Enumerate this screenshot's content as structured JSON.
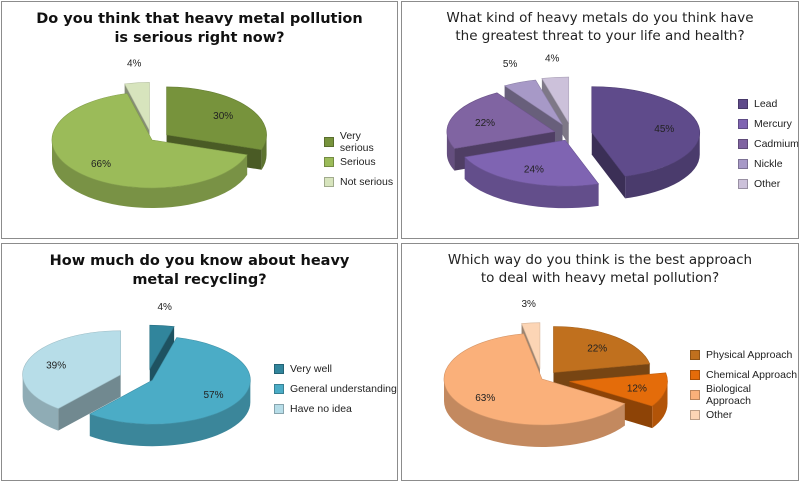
{
  "chart_data": [
    {
      "type": "pie",
      "title": "Do you think that heavy metal pollution\nis serious right now?",
      "categories": [
        "Very serious",
        "Serious",
        "Not serious"
      ],
      "values": [
        30,
        66,
        4
      ],
      "labels": [
        "30%",
        "66%",
        "4%"
      ],
      "colors": [
        "#77933c",
        "#9bbb59",
        "#d7e4bd"
      ],
      "legend_position": "right"
    },
    {
      "type": "pie",
      "title": "What kind of heavy metals do you think have\nthe greatest threat to your life and health?",
      "categories": [
        "Lead",
        "Mercury",
        "Cadmium",
        "Nickle",
        "Other"
      ],
      "values": [
        45,
        24,
        22,
        5,
        4
      ],
      "labels": [
        "45%",
        "24%",
        "22%",
        "5%",
        "4%"
      ],
      "colors": [
        "#5f4b8b",
        "#7f64b2",
        "#8064a2",
        "#a799c7",
        "#ccc1da"
      ],
      "legend_position": "right"
    },
    {
      "type": "pie",
      "title": "How much do you know about heavy\nmetal recycling?",
      "categories": [
        "Very well",
        "General understanding",
        "Have no idea"
      ],
      "values": [
        4,
        57,
        39
      ],
      "labels": [
        "4%",
        "57%",
        "39%"
      ],
      "colors": [
        "#31859c",
        "#4bacc6",
        "#b7dde8"
      ],
      "legend_position": "right"
    },
    {
      "type": "pie",
      "title": "Which way do you think is the best approach\nto deal with heavy metal pollution?",
      "categories": [
        "Physical Approach",
        "Chemical Approach",
        "Biological Approach",
        "Other"
      ],
      "values": [
        22,
        12,
        63,
        3
      ],
      "labels": [
        "22%",
        "12%",
        "63%",
        "3%"
      ],
      "colors": [
        "#c0701e",
        "#e46c0a",
        "#fab07a",
        "#fcd5b5"
      ],
      "legend_position": "right"
    }
  ]
}
